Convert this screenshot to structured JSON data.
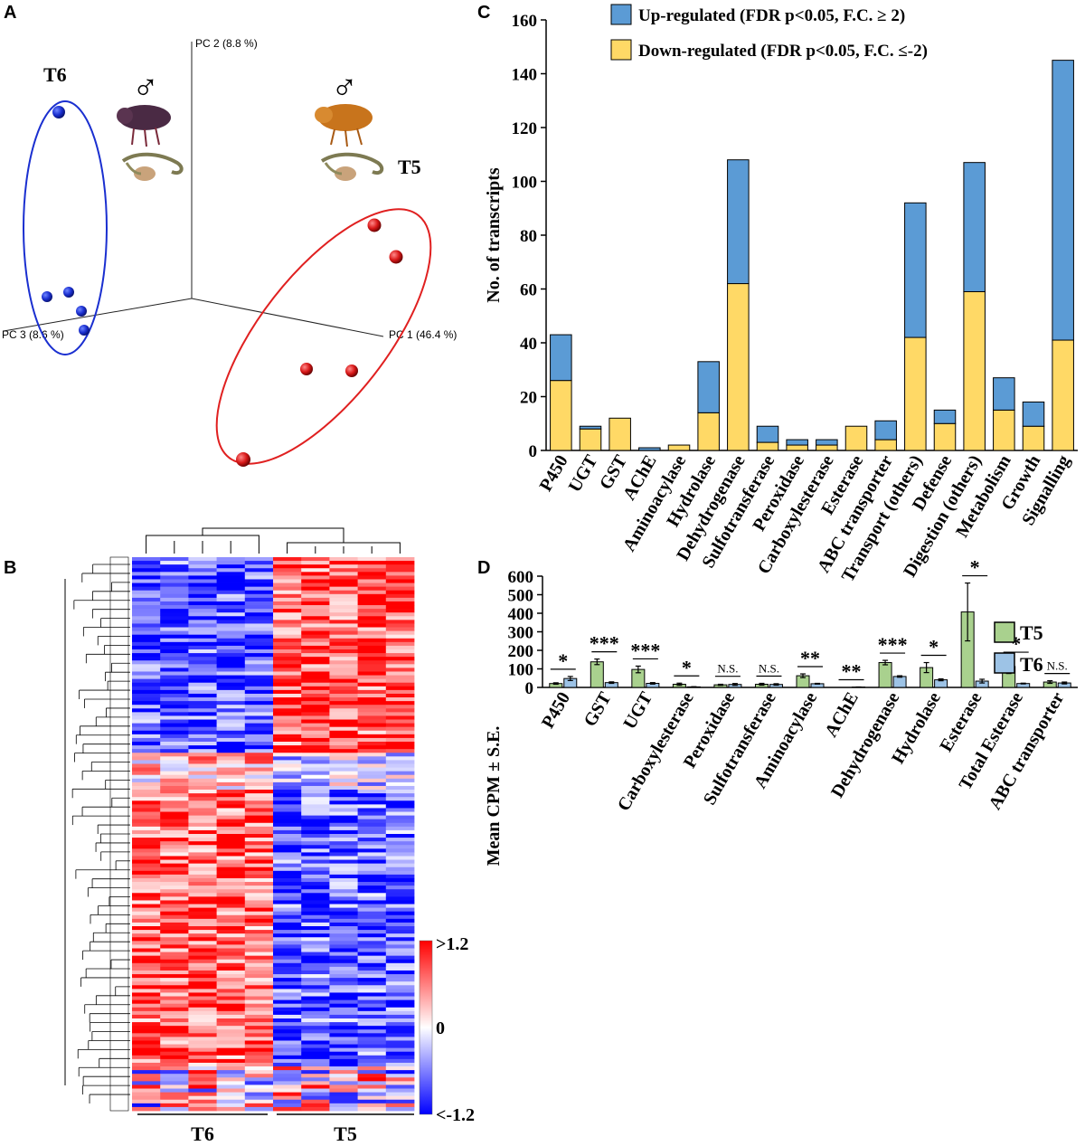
{
  "panel_labels": {
    "a": "A",
    "b": "B",
    "c": "C",
    "d": "D"
  },
  "chart_data": [
    {
      "panel": "A",
      "type": "scatter",
      "subtype": "3d-pca",
      "axes": {
        "pc1": "PC 1 (46.4 %)",
        "pc2": "PC 2 (8.8 %)",
        "pc3": "PC 3 (8.6 %)"
      },
      "groups": [
        {
          "name": "T6",
          "color": "#1a2fd0",
          "symbol": "♂",
          "n_points": 5
        },
        {
          "name": "T5",
          "color": "#d81818",
          "symbol": "♂",
          "n_points": 5
        }
      ]
    },
    {
      "panel": "B",
      "type": "heatmap",
      "column_groups": [
        "T6",
        "T5"
      ],
      "n_columns": 10,
      "scale": {
        "max_label": ">1.2",
        "mid_label": "0",
        "min_label": "<-1.2",
        "min": -1.2,
        "max": 1.2,
        "colors": [
          "#0000ff",
          "#ffffff",
          "#ff0000"
        ]
      }
    },
    {
      "panel": "C",
      "type": "bar",
      "stacked": true,
      "ylabel": "No. of transcripts",
      "ylim": [
        0,
        160
      ],
      "yticks": [
        0,
        20,
        40,
        60,
        80,
        100,
        120,
        140,
        160
      ],
      "legend": [
        {
          "name": "Up-regulated (FDR p<0.05, F.C. ≥ 2)",
          "color": "#5b9bd5"
        },
        {
          "name": "Down-regulated (FDR p<0.05, F.C. ≤-2)",
          "color": "#ffd966"
        }
      ],
      "categories": [
        "P450",
        "UGT",
        "GST",
        "AChE",
        "Aminoacylase",
        "Hydrolase",
        "Dehydrogenase",
        "Sulfotransferase",
        "Peroxidase",
        "Carboxylesterase",
        "Esterase",
        "ABC transporter",
        "Transport (others)",
        "Defense",
        "Digestion (others)",
        "Metabolism",
        "Growth",
        "Signalling"
      ],
      "series": [
        {
          "name": "Down-regulated",
          "values": [
            26,
            8,
            12,
            0,
            2,
            14,
            62,
            3,
            2,
            2,
            9,
            4,
            42,
            10,
            59,
            15,
            9,
            41
          ]
        },
        {
          "name": "Up-regulated",
          "values": [
            17,
            1,
            0,
            1,
            0,
            19,
            46,
            6,
            2,
            2,
            0,
            7,
            50,
            5,
            48,
            12,
            9,
            104
          ]
        }
      ]
    },
    {
      "panel": "D",
      "type": "bar",
      "ylabel": "Mean CPM ± S.E.",
      "ylim": [
        0,
        600
      ],
      "yticks": [
        0,
        100,
        200,
        300,
        400,
        500,
        600
      ],
      "legend": [
        {
          "name": "T5",
          "color": "#a9d18e"
        },
        {
          "name": "T6",
          "color": "#9dc3e6"
        }
      ],
      "categories": [
        "P450",
        "GST",
        "UGT",
        "Carboxylesterase",
        "Peroxidase",
        "Sulfotransferase",
        "Aminoacylase",
        "AChE",
        "Dehydrogenase",
        "Hydrolase",
        "Esterase",
        "Total Esterase",
        "ABC transporter"
      ],
      "series": [
        {
          "name": "T5",
          "values": [
            21,
            138,
            97,
            17,
            14,
            17,
            63,
            0,
            134,
            107,
            407,
            113,
            29
          ],
          "errors": [
            4,
            15,
            18,
            6,
            3,
            5,
            10,
            0,
            12,
            27,
            156,
            38,
            7
          ]
        },
        {
          "name": "T6",
          "values": [
            48,
            26,
            22,
            3,
            16,
            16,
            20,
            2,
            59,
            41,
            34,
            21,
            24
          ],
          "errors": [
            11,
            4,
            4,
            1,
            5,
            4,
            2,
            0.5,
            4,
            5,
            10,
            2,
            5
          ]
        }
      ],
      "significance": [
        "*",
        "***",
        "***",
        "*",
        "N.S.",
        "N.S.",
        "**",
        "**",
        "***",
        "*",
        "*",
        "*",
        "N.S."
      ]
    }
  ]
}
